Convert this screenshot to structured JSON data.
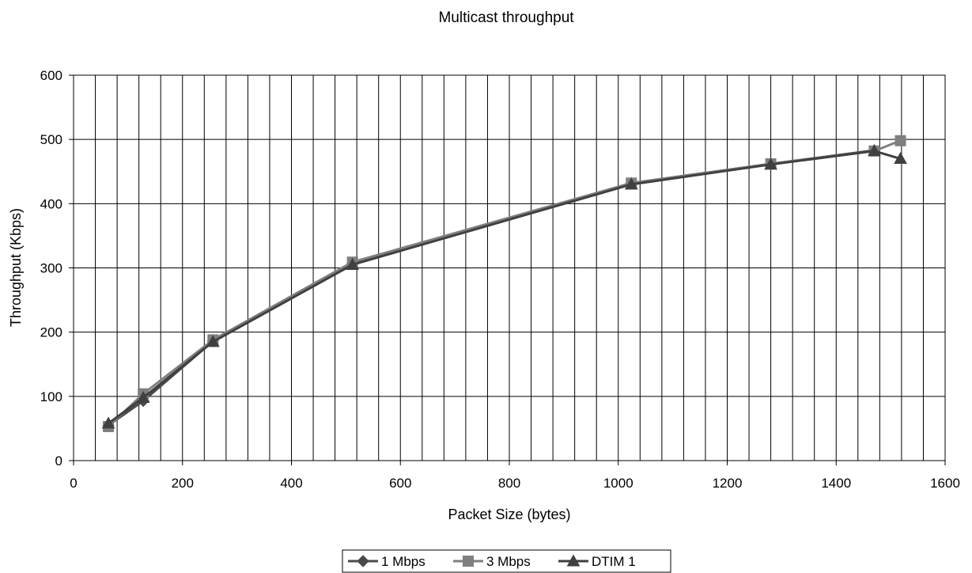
{
  "chart_data": {
    "type": "line",
    "title": "Multicast throughput",
    "xlabel": "Packet Size (bytes)",
    "ylabel": "Throughput (Kbps)",
    "xlim": [
      0,
      1600
    ],
    "ylim": [
      0,
      600
    ],
    "x_ticks": [
      "0",
      "200",
      "400",
      "600",
      "800",
      "1000",
      "1200",
      "1400",
      "1600"
    ],
    "y_ticks": [
      "0",
      "100",
      "200",
      "300",
      "400",
      "500",
      "600"
    ],
    "x_minor_step": 40,
    "grid": true,
    "legend_position": "bottom-center",
    "series": [
      {
        "name": "1 Mbps",
        "marker": "diamond",
        "color": "#4a4a4a",
        "x": [
          64,
          128,
          256,
          512,
          1024,
          1280,
          1470
        ],
        "y": [
          55,
          93,
          186,
          307,
          432,
          462,
          483
        ]
      },
      {
        "name": "3 Mbps",
        "marker": "square",
        "color": "#7f7f7f",
        "x": [
          64,
          128,
          256,
          512,
          1024,
          1280,
          1470,
          1518
        ],
        "y": [
          53,
          104,
          188,
          309,
          432,
          462,
          482,
          498
        ]
      },
      {
        "name": "DTIM 1",
        "marker": "triangle",
        "color": "#404040",
        "x": [
          64,
          128,
          256,
          512,
          1024,
          1280,
          1470,
          1518
        ],
        "y": [
          58,
          98,
          185,
          305,
          430,
          461,
          482,
          470
        ]
      }
    ]
  }
}
